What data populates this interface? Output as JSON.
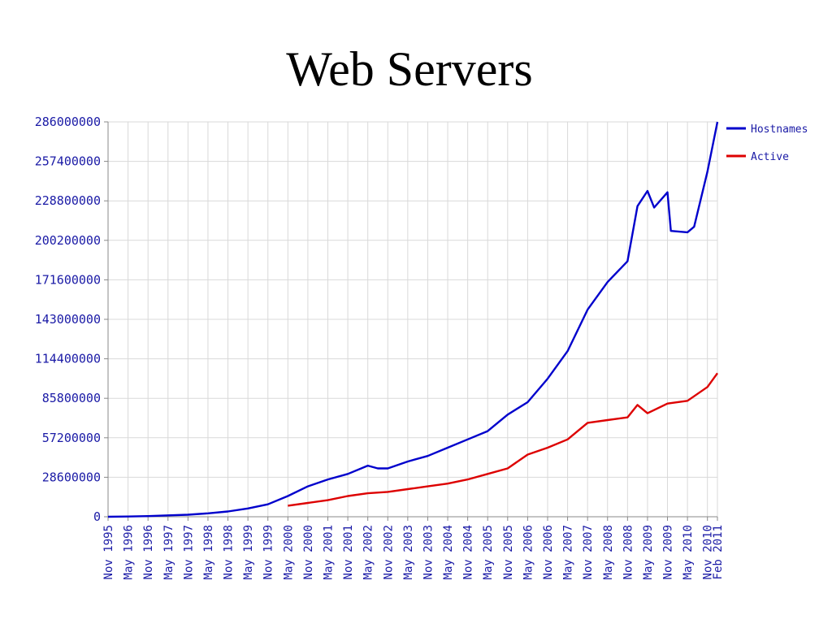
{
  "slide": {
    "title": "Web Servers"
  },
  "chart_data": {
    "type": "line",
    "title": "",
    "xlabel": "",
    "ylabel": "",
    "ylim": [
      0,
      286000000
    ],
    "grid": true,
    "legend_position": "top-right",
    "y_ticks": [
      "0",
      "28600000",
      "57200000",
      "85800000",
      "114400000",
      "143000000",
      "171600000",
      "200200000",
      "228800000",
      "257400000",
      "286000000"
    ],
    "x_tick_labels": [
      "Nov 1995",
      "May 1996",
      "Nov 1996",
      "May 1997",
      "Nov 1997",
      "May 1998",
      "Nov 1998",
      "May 1999",
      "Nov 1999",
      "May 2000",
      "Nov 2000",
      "May 2001",
      "Nov 2001",
      "May 2002",
      "Nov 2002",
      "May 2003",
      "Nov 2003",
      "May 2004",
      "Nov 2004",
      "May 2005",
      "Nov 2005",
      "May 2006",
      "Nov 2006",
      "May 2007",
      "Nov 2007",
      "May 2008",
      "Nov 2008",
      "May 2009",
      "Nov 2009",
      "May 2010",
      "Nov 2010",
      "Feb 2011"
    ],
    "x_tick_years": [
      1995.833,
      1996.333,
      1996.833,
      1997.333,
      1997.833,
      1998.333,
      1998.833,
      1999.333,
      1999.833,
      2000.333,
      2000.833,
      2001.333,
      2001.833,
      2002.333,
      2002.833,
      2003.333,
      2003.833,
      2004.333,
      2004.833,
      2005.333,
      2005.833,
      2006.333,
      2006.833,
      2007.333,
      2007.833,
      2008.333,
      2008.833,
      2009.333,
      2009.833,
      2010.333,
      2010.833,
      2011.083
    ],
    "x_range_years": [
      1995.833,
      2011.083
    ],
    "series": [
      {
        "name": "Hostnames",
        "color": "#0000cc",
        "points": [
          [
            1995.833,
            0
          ],
          [
            1996.333,
            200000
          ],
          [
            1996.833,
            500000
          ],
          [
            1997.333,
            1000000
          ],
          [
            1997.833,
            1500000
          ],
          [
            1998.333,
            2500000
          ],
          [
            1998.833,
            3800000
          ],
          [
            1999.333,
            6000000
          ],
          [
            1999.833,
            9000000
          ],
          [
            2000.333,
            15000000
          ],
          [
            2000.833,
            22000000
          ],
          [
            2001.333,
            27000000
          ],
          [
            2001.833,
            31000000
          ],
          [
            2002.333,
            37000000
          ],
          [
            2002.583,
            35000000
          ],
          [
            2002.833,
            35000000
          ],
          [
            2003.333,
            40000000
          ],
          [
            2003.833,
            44000000
          ],
          [
            2004.333,
            50000000
          ],
          [
            2004.833,
            56000000
          ],
          [
            2005.333,
            62000000
          ],
          [
            2005.833,
            74000000
          ],
          [
            2006.333,
            83000000
          ],
          [
            2006.833,
            100000000
          ],
          [
            2007.333,
            120000000
          ],
          [
            2007.833,
            150000000
          ],
          [
            2008.333,
            170000000
          ],
          [
            2008.833,
            185000000
          ],
          [
            2009.083,
            225000000
          ],
          [
            2009.333,
            236000000
          ],
          [
            2009.5,
            224000000
          ],
          [
            2009.833,
            235000000
          ],
          [
            2009.917,
            207000000
          ],
          [
            2010.333,
            206000000
          ],
          [
            2010.5,
            210000000
          ],
          [
            2010.833,
            250000000
          ],
          [
            2011.083,
            286000000
          ]
        ]
      },
      {
        "name": "Active",
        "color": "#dd0000",
        "points": [
          [
            2000.333,
            8000000
          ],
          [
            2000.833,
            10000000
          ],
          [
            2001.333,
            12000000
          ],
          [
            2001.833,
            15000000
          ],
          [
            2002.333,
            17000000
          ],
          [
            2002.833,
            18000000
          ],
          [
            2003.333,
            20000000
          ],
          [
            2003.833,
            22000000
          ],
          [
            2004.333,
            24000000
          ],
          [
            2004.833,
            27000000
          ],
          [
            2005.333,
            31000000
          ],
          [
            2005.833,
            35000000
          ],
          [
            2006.333,
            45000000
          ],
          [
            2006.833,
            50000000
          ],
          [
            2007.333,
            56000000
          ],
          [
            2007.833,
            68000000
          ],
          [
            2008.333,
            70000000
          ],
          [
            2008.833,
            72000000
          ],
          [
            2009.083,
            81000000
          ],
          [
            2009.333,
            75000000
          ],
          [
            2009.833,
            82000000
          ],
          [
            2010.333,
            84000000
          ],
          [
            2010.833,
            94000000
          ],
          [
            2011.083,
            104000000
          ]
        ]
      }
    ]
  }
}
